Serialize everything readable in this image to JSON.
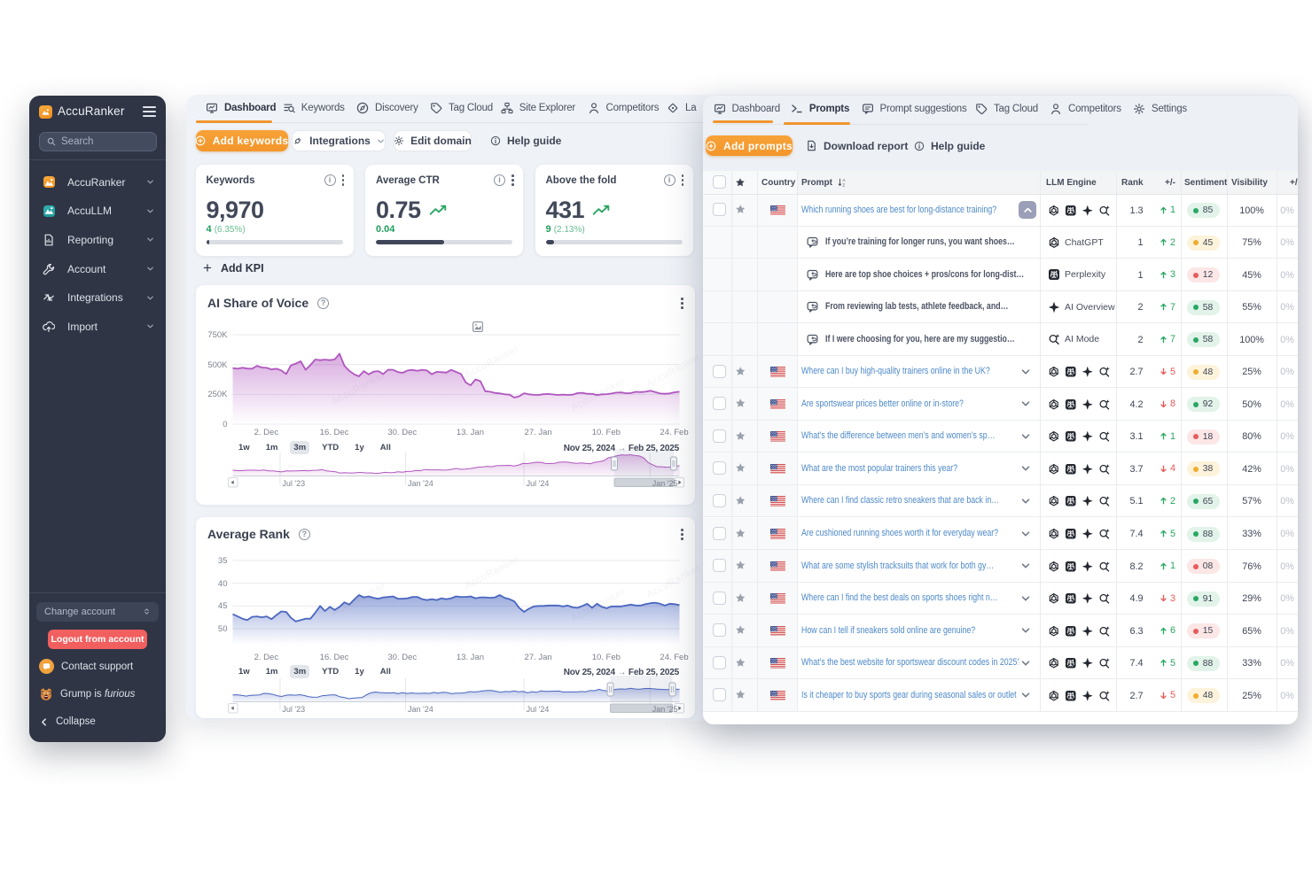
{
  "sidebar": {
    "logo_title": "AccuRanker",
    "search_placeholder": "Search",
    "nav_items": [
      {
        "icon": "accuranker-icon",
        "label": "AccuRanker"
      },
      {
        "icon": "accullm-icon",
        "label": "AccuLLM"
      },
      {
        "icon": "reporting-icon",
        "label": "Reporting"
      },
      {
        "icon": "account-icon",
        "label": "Account"
      },
      {
        "icon": "integrations-icon",
        "label": "Integrations"
      },
      {
        "icon": "import-icon",
        "label": "Import"
      }
    ],
    "change_account_label": "Change account",
    "logout_label": "Logout from account",
    "contact_support_label": "Contact support",
    "grump_label_prefix": "Grump is ",
    "grump_label_italic": "furious",
    "collapse_label": "Collapse"
  },
  "main_panel": {
    "tabs": [
      {
        "icon": "dashboard-icon",
        "label": "Dashboard",
        "active": true
      },
      {
        "icon": "keywords-icon",
        "label": "Keywords"
      },
      {
        "icon": "discovery-icon",
        "label": "Discovery"
      },
      {
        "icon": "tagcloud-icon",
        "label": "Tag Cloud"
      },
      {
        "icon": "site-explorer-icon",
        "label": "Site Explorer"
      },
      {
        "icon": "competitors-icon",
        "label": "Competitors"
      },
      {
        "icon": "landing-icon",
        "label": "La"
      }
    ],
    "toolbar": {
      "add_keywords_label": "Add keywords",
      "integrations_label": "Integrations",
      "edit_domain_label": "Edit domain",
      "help_guide_label": "Help guide"
    },
    "kpis": [
      {
        "title": "Keywords",
        "value": "9,970",
        "trend": false,
        "delta": "4",
        "delta_pct": "(6.35%)",
        "progress": 2.5
      },
      {
        "title": "Average CTR",
        "value": "0.75",
        "trend": true,
        "delta": "0.04",
        "delta_pct": "",
        "progress": 50
      },
      {
        "title": "Above the fold",
        "value": "431",
        "trend": true,
        "delta": "9",
        "delta_pct": "(2.13%)",
        "progress": 6
      }
    ],
    "add_kpi_label": "Add KPI"
  },
  "right_panel": {
    "tabs": [
      {
        "icon": "dashboard-icon",
        "label": "Dashboard"
      },
      {
        "icon": "prompts-icon",
        "label": "Prompts",
        "active": true
      },
      {
        "icon": "prompt-suggestions-icon",
        "label": "Prompt suggestions"
      },
      {
        "icon": "tagcloud-icon",
        "label": "Tag Cloud"
      },
      {
        "icon": "competitors-icon",
        "label": "Competitors"
      },
      {
        "icon": "settings-icon",
        "label": "Settings"
      }
    ],
    "toolbar": {
      "add_prompts_label": "Add prompts",
      "download_report_label": "Download report",
      "help_guide_label": "Help guide"
    },
    "table": {
      "headers": {
        "country": "Country",
        "prompt": "Prompt",
        "llm_engine": "LLM Engine",
        "rank": "Rank",
        "change": "+/-",
        "sentiment": "Sentiment",
        "visibility": "Visibility",
        "extra": "+/-"
      },
      "rows": [
        {
          "type": "parent",
          "expanded": true,
          "country": "us",
          "prompt": "Which running shoes are best for long-distance training?",
          "engines": [
            "chatgpt",
            "perplexity",
            "aioverview",
            "aimode"
          ],
          "rank": "1.3",
          "change": "1",
          "change_dir": "up",
          "sentiment": {
            "value": "85",
            "level": "green"
          },
          "visibility": "100%",
          "extra": "0%"
        },
        {
          "type": "answer",
          "prompt": "If you’re training for longer runs, you want shoes…",
          "engine": {
            "icon": "chatgpt",
            "label": "ChatGPT"
          },
          "rank": "1",
          "change": "2",
          "change_dir": "up",
          "sentiment": {
            "value": "45",
            "level": "yellow"
          },
          "visibility": "75%",
          "extra": "0%"
        },
        {
          "type": "answer",
          "prompt": "Here are top shoe choices + pros/cons for long-dist…",
          "engine": {
            "icon": "perplexity",
            "label": "Perplexity"
          },
          "rank": "1",
          "change": "3",
          "change_dir": "up",
          "sentiment": {
            "value": "12",
            "level": "red"
          },
          "visibility": "45%",
          "extra": "0%"
        },
        {
          "type": "answer",
          "prompt": "From reviewing lab tests, athlete feedback, and…",
          "engine": {
            "icon": "aioverview",
            "label": "AI Overview"
          },
          "rank": "2",
          "change": "7",
          "change_dir": "up",
          "sentiment": {
            "value": "58",
            "level": "green"
          },
          "visibility": "55%",
          "extra": "0%"
        },
        {
          "type": "answer",
          "prompt": "If I were choosing for you, here are my suggestio…",
          "engine": {
            "icon": "aimode",
            "label": "AI Mode"
          },
          "rank": "2",
          "change": "7",
          "change_dir": "up",
          "sentiment": {
            "value": "58",
            "level": "green"
          },
          "visibility": "100%",
          "extra": "0%"
        },
        {
          "type": "parent",
          "country": "us",
          "prompt": "Where can I buy high-quality trainers online in the UK?",
          "engines": [
            "chatgpt",
            "perplexity",
            "aioverview",
            "aimode"
          ],
          "rank": "2.7",
          "change": "5",
          "change_dir": "down",
          "sentiment": {
            "value": "48",
            "level": "yellow"
          },
          "visibility": "25%",
          "extra": "0%"
        },
        {
          "type": "parent",
          "country": "us",
          "prompt": "Are sportswear prices better online or in-store?",
          "engines": [
            "chatgpt",
            "perplexity",
            "aioverview",
            "aimode"
          ],
          "rank": "4.2",
          "change": "8",
          "change_dir": "down",
          "sentiment": {
            "value": "92",
            "level": "green"
          },
          "visibility": "50%",
          "extra": "0%"
        },
        {
          "type": "parent",
          "country": "us",
          "prompt": "What’s the difference between men’s and women’s sp…",
          "engines": [
            "chatgpt",
            "perplexity",
            "aioverview",
            "aimode"
          ],
          "rank": "3.1",
          "change": "1",
          "change_dir": "up",
          "sentiment": {
            "value": "18",
            "level": "red"
          },
          "visibility": "80%",
          "extra": "0%"
        },
        {
          "type": "parent",
          "country": "us",
          "prompt": "What are the most popular trainers this year?",
          "engines": [
            "chatgpt",
            "perplexity",
            "aioverview",
            "aimode"
          ],
          "rank": "3.7",
          "change": "4",
          "change_dir": "down",
          "sentiment": {
            "value": "38",
            "level": "yellow"
          },
          "visibility": "42%",
          "extra": "0%"
        },
        {
          "type": "parent",
          "country": "us",
          "prompt": "Where can I find classic retro sneakers that are back in…",
          "engines": [
            "chatgpt",
            "perplexity",
            "aioverview",
            "aimode"
          ],
          "rank": "5.1",
          "change": "2",
          "change_dir": "up",
          "sentiment": {
            "value": "65",
            "level": "green"
          },
          "visibility": "57%",
          "extra": "0%"
        },
        {
          "type": "parent",
          "country": "us",
          "prompt": "Are cushioned running shoes worth it for everyday wear?",
          "engines": [
            "chatgpt",
            "perplexity",
            "aioverview",
            "aimode"
          ],
          "rank": "7.4",
          "change": "5",
          "change_dir": "up",
          "sentiment": {
            "value": "88",
            "level": "green"
          },
          "visibility": "33%",
          "extra": "0%"
        },
        {
          "type": "parent",
          "country": "us",
          "prompt": "What are some stylish tracksuits that work for both gy…",
          "engines": [
            "chatgpt",
            "perplexity",
            "aioverview",
            "aimode"
          ],
          "rank": "8.2",
          "change": "1",
          "change_dir": "up",
          "sentiment": {
            "value": "08",
            "level": "red"
          },
          "visibility": "76%",
          "extra": "0%"
        },
        {
          "type": "parent",
          "country": "us",
          "prompt": "Where can I find the best deals on sports shoes right n…",
          "engines": [
            "chatgpt",
            "perplexity",
            "aioverview",
            "aimode"
          ],
          "rank": "4.9",
          "change": "3",
          "change_dir": "down",
          "sentiment": {
            "value": "91",
            "level": "green"
          },
          "visibility": "29%",
          "extra": "0%"
        },
        {
          "type": "parent",
          "country": "us",
          "prompt": "How can I tell if sneakers sold online are genuine?",
          "engines": [
            "chatgpt",
            "perplexity",
            "aioverview",
            "aimode"
          ],
          "rank": "6.3",
          "change": "6",
          "change_dir": "up",
          "sentiment": {
            "value": "15",
            "level": "red"
          },
          "visibility": "65%",
          "extra": "0%"
        },
        {
          "type": "parent",
          "country": "us",
          "prompt": "What’s the best website for sportswear discount codes in 2025?",
          "engines": [
            "chatgpt",
            "perplexity",
            "aioverview",
            "aimode"
          ],
          "rank": "7.4",
          "change": "5",
          "change_dir": "up",
          "sentiment": {
            "value": "88",
            "level": "green"
          },
          "visibility": "33%",
          "extra": "0%"
        },
        {
          "type": "parent",
          "country": "us",
          "prompt": "Is it cheaper to buy sports gear during seasonal sales or outlet",
          "engines": [
            "chatgpt",
            "perplexity",
            "aioverview",
            "aimode"
          ],
          "rank": "2.7",
          "change": "5",
          "change_dir": "down",
          "sentiment": {
            "value": "48",
            "level": "yellow"
          },
          "visibility": "25%",
          "extra": "0%"
        }
      ]
    }
  },
  "chart_data": [
    {
      "type": "area",
      "title": "AI Share of Voice",
      "color": "#b056bf",
      "ylabel": "",
      "xlabel": "",
      "ylim": [
        0,
        750
      ],
      "yticks": [
        {
          "v": 750,
          "label": "750K"
        },
        {
          "v": 500,
          "label": "500K"
        },
        {
          "v": 250,
          "label": "250K"
        },
        {
          "v": 0,
          "label": "0"
        }
      ],
      "xticks": [
        "2. Dec",
        "16. Dec",
        "30. Dec",
        "13. Jan",
        "27. Jan",
        "10. Feb",
        "24. Feb"
      ],
      "range_buttons": [
        "1w",
        "1m",
        "3m",
        "YTD",
        "1y",
        "All"
      ],
      "active_range": "3m",
      "date_from": "Nov 25, 2024",
      "date_to": "Feb 25, 2025",
      "nav_labels": [
        "Jul '23",
        "Jan '24",
        "Jul '24",
        "Jan '25"
      ],
      "reversed": false,
      "values": [
        470,
        465,
        473,
        466,
        465,
        489,
        475,
        472,
        459,
        465,
        451,
        420,
        493,
        508,
        527,
        456,
        496,
        542,
        537,
        541,
        537,
        543,
        591,
        489,
        448,
        418,
        401,
        445,
        417,
        440,
        445,
        420,
        457,
        456,
        437,
        431,
        450,
        455,
        448,
        456,
        450,
        419,
        439,
        436,
        433,
        455,
        438,
        421,
        349,
        326,
        375,
        360,
        276,
        272,
        262,
        258,
        250,
        247,
        223,
        234,
        259,
        250,
        246,
        245,
        251,
        253,
        249,
        245,
        247,
        245,
        247,
        261,
        263,
        255,
        254,
        244,
        250,
        252,
        257,
        264,
        266,
        259,
        261,
        271,
        269,
        272,
        281,
        269,
        257,
        255,
        258,
        267,
        272
      ],
      "navigator": [
        6.5,
        6.0,
        6.0,
        6.4,
        6.5,
        6.5,
        6.3,
        6.7,
        5.7,
        5.8,
        5.1,
        4.6,
        5.7,
        5.6,
        5.8,
        5.9,
        6.1,
        5.7,
        6.4,
        6.5,
        7.1,
        5.8,
        5.2,
        4.8,
        3.3,
        3.8,
        3.4,
        3.4,
        3.9,
        3.9,
        3.4,
        3.5,
        2.9,
        3.2,
        4.1,
        3.8,
        3.9,
        4.7,
        4.3,
        5.1,
        5.3,
        6.1,
        5.9,
        7.3,
        6.9,
        6.9,
        6.9,
        6.6,
        6.8,
        7.5,
        8.5,
        7.5,
        7.7,
        8.3,
        9.0,
        10.0,
        10.2,
        10.9,
        10.4,
        11.6,
        11.8,
        11.9,
        12.0,
        11.3,
        12.4,
        14.2,
        14.0,
        14.7,
        15.5,
        15.4,
        14.1,
        14.0,
        14.3,
        15.5,
        15.8,
        15.6,
        14.8,
        14.3,
        14.7,
        14.2,
        13.8,
        15.4,
        16.1,
        17.1,
        20.4,
        21.6,
        22.8,
        23.9,
        23.5,
        24.0,
        23.1,
        22.6,
        20.4,
        15.2,
        12.6,
        10.4,
        10.4,
        9.9,
        10.0,
        11.0,
        11.5
      ]
    },
    {
      "type": "line",
      "title": "Average Rank",
      "color": "#4a66c0",
      "ylabel": "",
      "xlabel": "",
      "ylim": [
        35,
        50
      ],
      "yticks": [
        {
          "v": 35,
          "label": "35"
        },
        {
          "v": 40,
          "label": "40"
        },
        {
          "v": 45,
          "label": "45"
        },
        {
          "v": 50,
          "label": "50"
        }
      ],
      "xticks": [
        "2. Dec",
        "16. Dec",
        "30. Dec",
        "13. Jan",
        "27. Jan",
        "10. Feb",
        "24. Feb"
      ],
      "range_buttons": [
        "1w",
        "1m",
        "3m",
        "YTD",
        "1y",
        "All"
      ],
      "active_range": "3m",
      "date_from": "Nov 25, 2024",
      "date_to": "Feb 25, 2025",
      "nav_labels": [
        "Jul '23",
        "Jan '24",
        "Jul '24",
        "Jan '25"
      ],
      "reversed": true,
      "values": [
        46.8,
        47.3,
        47.8,
        48.1,
        47.4,
        47.3,
        47.5,
        47.3,
        47.9,
        47.0,
        46.2,
        46.3,
        47.6,
        48.4,
        48.1,
        47.8,
        47.8,
        46.5,
        45.0,
        46.1,
        45.2,
        45.9,
        45.2,
        44.2,
        44.7,
        43.6,
        42.6,
        43.1,
        42.9,
        43.2,
        43.4,
        43.1,
        43.0,
        42.9,
        43.4,
        43.4,
        43.3,
        43.0,
        43.0,
        43.5,
        43.7,
        43.5,
        43.7,
        43.3,
        43.5,
        43.3,
        42.9,
        43.0,
        43.0,
        42.9,
        43.3,
        43.1,
        43.1,
        43.2,
        43.1,
        42.6,
        43.2,
        43.5,
        44.0,
        45.4,
        46.3,
        45.6,
        45.1,
        45.0,
        45.0,
        44.9,
        44.9,
        44.9,
        45.1,
        44.9,
        45.3,
        45.4,
        45.0,
        44.5,
        45.4,
        44.5,
        45.2,
        45.5,
        45.1,
        45.1,
        45.1,
        44.9,
        44.7,
        44.9,
        44.9,
        44.6,
        44.4,
        44.3,
        44.5,
        44.9,
        44.5,
        44.6,
        44.8
      ],
      "navigator": [
        7.7,
        7.9,
        7.3,
        6.4,
        7.3,
        7.5,
        7.8,
        9.5,
        9.3,
        8.3,
        6.8,
        6.0,
        7.5,
        7.7,
        7.4,
        8.0,
        7.1,
        5.8,
        5.1,
        5.3,
        6.8,
        7.2,
        7.8,
        7.7,
        5.6,
        4.7,
        3.5,
        4.1,
        4.5,
        4.9,
        8.0,
        10.3,
        11.0,
        10.4,
        10.1,
        9.9,
        10.3,
        9.2,
        10.4,
        9.4,
        10.0,
        9.5,
        9.5,
        9.8,
        9.4,
        10.6,
        9.8,
        10.7,
        10.4,
        9.1,
        9.7,
        9.7,
        10.1,
        11.5,
        11.1,
        11.5,
        12.4,
        12.8,
        12.7,
        11.8,
        10.7,
        11.6,
        11.4,
        12.3,
        11.3,
        11.7,
        10.1,
        11.4,
        10.7,
        12.4,
        11.8,
        11.9,
        12.0,
        12.1,
        11.0,
        11.1,
        11.1,
        11.1,
        11.6,
        11.3,
        12.8,
        12.5,
        14.1,
        12.7,
        12.1,
        13.2,
        14.3,
        14.5,
        14.2,
        15.3,
        14.5,
        14.1,
        14.9,
        15.1,
        14.7,
        14.3,
        14.0,
        13.8,
        14.0,
        14.1,
        14.1
      ]
    }
  ]
}
